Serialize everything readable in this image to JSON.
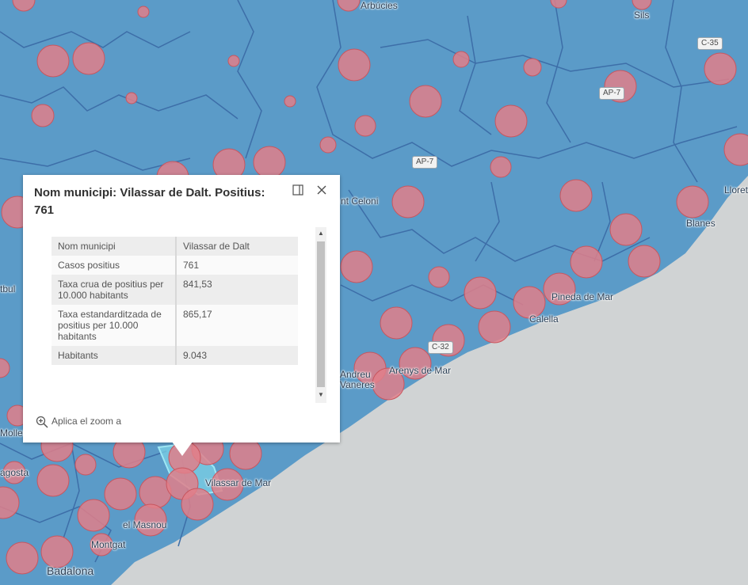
{
  "colors": {
    "land": "#5b9bc8",
    "sea": "#d0d3d4",
    "boundary": "#3d6ea8",
    "circle_fill": "#e07f8a",
    "circle_stroke": "#c8565f",
    "selected": "#7bd0e6"
  },
  "places": {
    "arbucies": "Arbúcies",
    "sils": "Sils",
    "sant_celoni": "nt Celoni",
    "lloret": "Lloret",
    "blanes": "Blanes",
    "pineda": "Pineda de Mar",
    "calella": "Calella",
    "arenys": "Arenys de Mar",
    "andreu": "Andreu",
    "vaneres": "Vaneres",
    "vilassar_mar": "Vilassar de Mar",
    "masnou": "el Masnou",
    "montgat": "Montgat",
    "badalona": "Badalona",
    "mollet": "Mollet",
    "agosta": "agosta",
    "tbul": "tbul"
  },
  "roads": {
    "c35": "C-35",
    "ap7_a": "AP-7",
    "ap7_b": "AP-7",
    "c32": "C-32"
  },
  "popup": {
    "title": "Nom municipi: Vilassar de Dalt. Positius: 761",
    "dock_icon": "dock-icon",
    "close_icon": "close-icon",
    "rows": [
      {
        "key": "Nom municipi",
        "value": "Vilassar de Dalt"
      },
      {
        "key": "Casos positius",
        "value": "761"
      },
      {
        "key": "Taxa crua de positius per 10.000 habitants",
        "value": "841,53"
      },
      {
        "key": "Taxa estandarditzada de positius per 10.000 habitants",
        "value": "865,17"
      },
      {
        "key": "Habitants",
        "value": "9.043"
      }
    ],
    "zoom_label": "Aplica el zoom a"
  }
}
